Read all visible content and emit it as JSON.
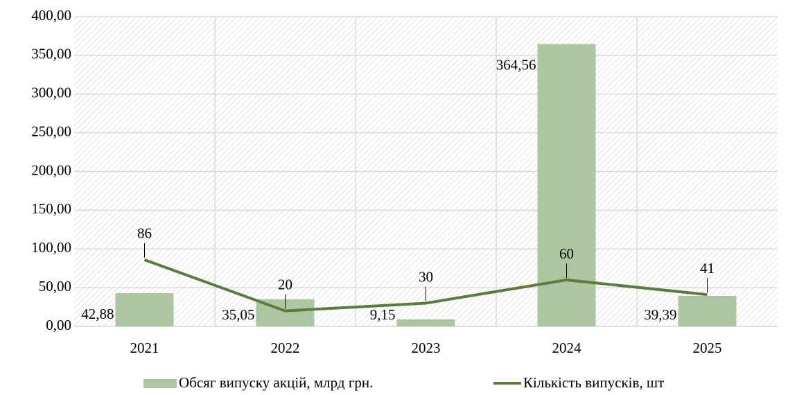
{
  "chart_data": {
    "type": "bar",
    "categories": [
      "2021",
      "2022",
      "2023",
      "2024",
      "2025"
    ],
    "series": [
      {
        "name": "Обсяг випуску акцій, млрд грн.",
        "type": "bar",
        "color": "#adc6a2",
        "values": [
          42.88,
          35.05,
          9.15,
          364.56,
          39.39
        ],
        "value_labels": [
          "42,88",
          "35,05",
          "9,15",
          "364,56",
          "39,39"
        ]
      },
      {
        "name": "Кількість випусків, шт",
        "type": "line",
        "color": "#5d7b3c",
        "values": [
          86,
          20,
          30,
          60,
          41
        ]
      }
    ],
    "ylim": [
      0,
      400
    ],
    "yticks": [
      {
        "value": 0,
        "label": "0,00"
      },
      {
        "value": 50,
        "label": "50,00"
      },
      {
        "value": 100,
        "label": "100,00"
      },
      {
        "value": 150,
        "label": "150,00"
      },
      {
        "value": 200,
        "label": "200,00"
      },
      {
        "value": 250,
        "label": "250,00"
      },
      {
        "value": 300,
        "label": "300,00"
      },
      {
        "value": 350,
        "label": "350,00"
      },
      {
        "value": 400,
        "label": "400,00"
      }
    ],
    "grid": true,
    "legend": "bottom"
  }
}
